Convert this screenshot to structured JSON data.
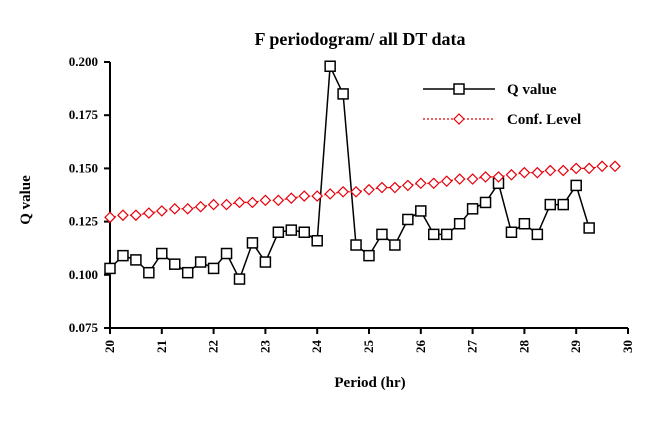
{
  "chart_data": {
    "type": "line",
    "title": "F periodogram/ all DT data",
    "xlabel": "Period (hr)",
    "ylabel": "Q value",
    "xlim": [
      20,
      30
    ],
    "ylim": [
      0.075,
      0.2
    ],
    "xticks": [
      "20",
      "21",
      "22",
      "23",
      "24",
      "25",
      "26",
      "27",
      "28",
      "29",
      "30"
    ],
    "yticks": [
      "0.075",
      "0.100",
      "0.125",
      "0.150",
      "0.175",
      "0.200"
    ],
    "grid": false,
    "legend_position": "top-right",
    "series": [
      {
        "name": "Q value",
        "color": "#000000",
        "marker": "square",
        "x": [
          20.0,
          20.25,
          20.5,
          20.75,
          21.0,
          21.25,
          21.5,
          21.75,
          22.0,
          22.25,
          22.5,
          22.75,
          23.0,
          23.25,
          23.5,
          23.75,
          24.0,
          24.25,
          24.5,
          24.75,
          25.0,
          25.25,
          25.5,
          25.75,
          26.0,
          26.25,
          26.5,
          26.75,
          27.0,
          27.25,
          27.5,
          27.75,
          28.0,
          28.25,
          28.5,
          28.75,
          29.0,
          29.25,
          29.5,
          29.75
        ],
        "values": [
          0.103,
          0.109,
          0.107,
          0.101,
          0.11,
          0.105,
          0.101,
          0.106,
          0.103,
          0.11,
          0.098,
          0.115,
          0.106,
          0.12,
          0.121,
          0.12,
          0.116,
          0.198,
          0.185,
          0.114,
          0.109,
          0.119,
          0.114,
          0.126,
          0.13,
          0.119,
          0.119,
          0.124,
          0.131,
          0.134,
          0.143,
          0.12,
          0.124,
          0.119,
          0.133,
          0.133,
          0.142,
          0.122,
          null,
          null
        ]
      },
      {
        "name": "Conf. Level",
        "color": "#e8000b",
        "marker": "diamond",
        "x": [
          20.0,
          20.25,
          20.5,
          20.75,
          21.0,
          21.25,
          21.5,
          21.75,
          22.0,
          22.25,
          22.5,
          22.75,
          23.0,
          23.25,
          23.5,
          23.75,
          24.0,
          24.25,
          24.5,
          24.75,
          25.0,
          25.25,
          25.5,
          25.75,
          26.0,
          26.25,
          26.5,
          26.75,
          27.0,
          27.25,
          27.5,
          27.75,
          28.0,
          28.25,
          28.5,
          28.75,
          29.0,
          29.25,
          29.5,
          29.75
        ],
        "values": [
          0.127,
          0.128,
          0.128,
          0.129,
          0.13,
          0.131,
          0.131,
          0.132,
          0.133,
          0.133,
          0.134,
          0.134,
          0.135,
          0.135,
          0.136,
          0.137,
          0.137,
          0.138,
          0.139,
          0.139,
          0.14,
          0.141,
          0.141,
          0.142,
          0.143,
          0.143,
          0.144,
          0.145,
          0.145,
          0.146,
          0.146,
          0.147,
          0.148,
          0.148,
          0.149,
          0.149,
          0.15,
          0.15,
          0.151,
          0.151
        ]
      }
    ]
  }
}
